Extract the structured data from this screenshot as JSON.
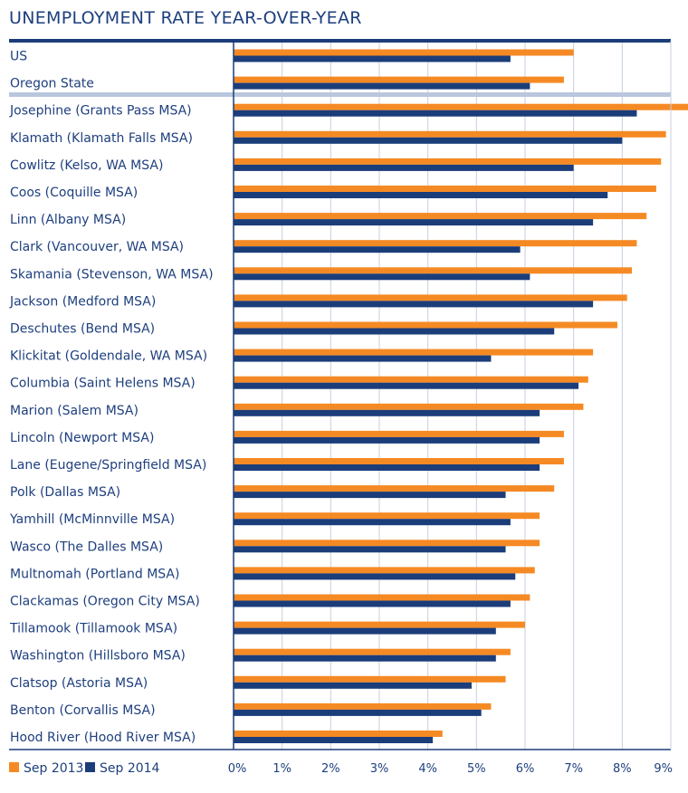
{
  "chart_data": {
    "type": "bar",
    "orientation": "horizontal",
    "title": "UNEMPLOYMENT RATE YEAR-OVER-YEAR",
    "xlabel": "",
    "ylabel": "",
    "xlim": [
      0,
      9
    ],
    "x_ticks": [
      0,
      1,
      2,
      3,
      4,
      5,
      6,
      7,
      8,
      9
    ],
    "x_tick_labels": [
      "0%",
      "1%",
      "2%",
      "3%",
      "4%",
      "5%",
      "6%",
      "7%",
      "8%",
      "9%"
    ],
    "grid": true,
    "legend_position": "bottom-left",
    "categories": [
      "US",
      "Oregon State",
      "Josephine (Grants Pass MSA)",
      "Klamath (Klamath Falls MSA)",
      "Cowlitz (Kelso, WA MSA)",
      "Coos (Coquille MSA)",
      "Linn (Albany MSA)",
      "Clark (Vancouver, WA MSA)",
      "Skamania (Stevenson, WA MSA)",
      "Jackson (Medford MSA)",
      "Deschutes (Bend MSA)",
      "Klickitat (Goldendale, WA MSA)",
      "Columbia (Saint Helens MSA)",
      "Marion (Salem MSA)",
      "Lincoln (Newport MSA)",
      "Lane (Eugene/Springfield MSA)",
      "Polk (Dallas MSA)",
      "Yamhill (McMinnville MSA)",
      "Wasco (The Dalles MSA)",
      "Multnomah (Portland MSA)",
      "Clackamas (Oregon City MSA)",
      "Tillamook (Tillamook MSA)",
      "Washington (Hillsboro MSA)",
      "Clatsop (Astoria MSA)",
      "Benton (Corvallis MSA)",
      "Hood River (Hood River MSA)"
    ],
    "series": [
      {
        "name": "Sep 2013",
        "color": "#f58a24",
        "values": [
          7.0,
          6.8,
          9.4,
          8.9,
          8.8,
          8.7,
          8.5,
          8.3,
          8.2,
          8.1,
          7.9,
          7.4,
          7.3,
          7.2,
          6.8,
          6.8,
          6.6,
          6.3,
          6.3,
          6.2,
          6.1,
          6.0,
          5.7,
          5.6,
          5.3,
          4.3
        ]
      },
      {
        "name": "Sep 2014",
        "color": "#1b3d7a",
        "values": [
          5.7,
          6.1,
          8.3,
          8.0,
          7.0,
          7.7,
          7.4,
          5.9,
          6.1,
          7.4,
          6.6,
          5.3,
          7.1,
          6.3,
          6.3,
          6.3,
          5.6,
          5.7,
          5.6,
          5.8,
          5.7,
          5.4,
          5.4,
          4.9,
          5.1,
          4.1
        ]
      }
    ]
  },
  "colors": {
    "title_text": "#1e3f7e",
    "frame": "#1b3d7a",
    "separator": "#b9c6dc",
    "grid": "#c7cfdd"
  }
}
